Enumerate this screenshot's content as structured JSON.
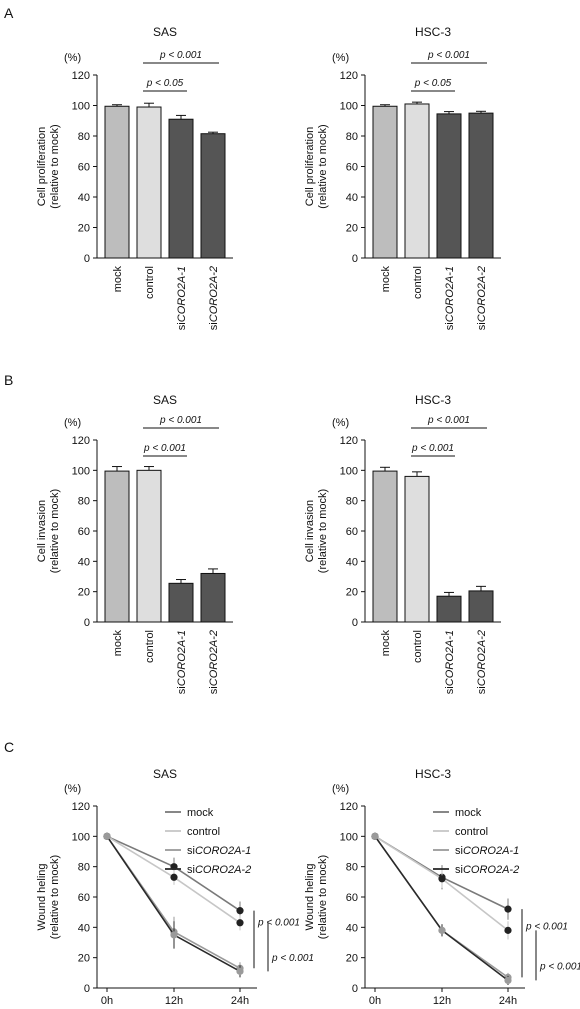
{
  "panels": [
    {
      "letter": "A"
    },
    {
      "letter": "B"
    },
    {
      "letter": "C"
    }
  ],
  "chart_data": [
    {
      "type": "bar",
      "panel": "A",
      "title": "SAS",
      "unit": "(%)",
      "ylabel_lines": [
        "Cell proliferation",
        "(relative to mock)"
      ],
      "ylim": [
        0,
        120
      ],
      "yticks": [
        "0",
        "20",
        "40",
        "60",
        "80",
        "100",
        "120"
      ],
      "categories": [
        "mock",
        "control",
        "siCORO2A-1",
        "siCORO2A-2"
      ],
      "cat_prefix": [
        "",
        "",
        "si",
        "si"
      ],
      "cat_italic": [
        "mock",
        "control",
        "CORO2A-1",
        "CORO2A-2"
      ],
      "values": [
        99.5,
        99,
        91,
        81.5
      ],
      "errors": [
        1,
        2.5,
        2.5,
        1
      ],
      "colors": [
        "#bdbdbd",
        "#dedede",
        "#555555",
        "#555555"
      ],
      "significance": [
        {
          "from": 1,
          "to": 2,
          "label": "p < 0.05"
        },
        {
          "from": 1,
          "to": 3,
          "label": "p < 0.001"
        }
      ]
    },
    {
      "type": "bar",
      "panel": "A",
      "title": "HSC-3",
      "unit": "(%)",
      "ylabel_lines": [
        "Cell proliferation",
        "(relative to mock)"
      ],
      "ylim": [
        0,
        120
      ],
      "yticks": [
        "0",
        "20",
        "40",
        "60",
        "80",
        "100",
        "120"
      ],
      "categories": [
        "mock",
        "control",
        "siCORO2A-1",
        "siCORO2A-2"
      ],
      "cat_prefix": [
        "",
        "",
        "si",
        "si"
      ],
      "cat_italic": [
        "mock",
        "control",
        "CORO2A-1",
        "CORO2A-2"
      ],
      "values": [
        99.5,
        101,
        94.5,
        95
      ],
      "errors": [
        1,
        1.2,
        1.5,
        1.2
      ],
      "colors": [
        "#bdbdbd",
        "#dedede",
        "#555555",
        "#555555"
      ],
      "significance": [
        {
          "from": 1,
          "to": 2,
          "label": "p < 0.05"
        },
        {
          "from": 1,
          "to": 3,
          "label": "p < 0.001"
        }
      ]
    },
    {
      "type": "bar",
      "panel": "B",
      "title": "SAS",
      "unit": "(%)",
      "ylabel_lines": [
        "Cell invasion",
        "(relative to mock)"
      ],
      "ylim": [
        0,
        120
      ],
      "yticks": [
        "0",
        "20",
        "40",
        "60",
        "80",
        "100",
        "120"
      ],
      "categories": [
        "mock",
        "control",
        "siCORO2A-1",
        "siCORO2A-2"
      ],
      "cat_prefix": [
        "",
        "",
        "si",
        "si"
      ],
      "cat_italic": [
        "mock",
        "control",
        "CORO2A-1",
        "CORO2A-2"
      ],
      "values": [
        99.5,
        100,
        25.5,
        32
      ],
      "errors": [
        3,
        2.5,
        2.5,
        3
      ],
      "colors": [
        "#bdbdbd",
        "#dedede",
        "#555555",
        "#555555"
      ],
      "significance": [
        {
          "from": 1,
          "to": 2,
          "label": "p < 0.001"
        },
        {
          "from": 1,
          "to": 3,
          "label": "p < 0.001"
        }
      ]
    },
    {
      "type": "bar",
      "panel": "B",
      "title": "HSC-3",
      "unit": "(%)",
      "ylabel_lines": [
        "Cell invasion",
        "(relative to mock)"
      ],
      "ylim": [
        0,
        120
      ],
      "yticks": [
        "0",
        "20",
        "40",
        "60",
        "80",
        "100",
        "120"
      ],
      "categories": [
        "mock",
        "control",
        "siCORO2A-1",
        "siCORO2A-2"
      ],
      "cat_prefix": [
        "",
        "",
        "si",
        "si"
      ],
      "cat_italic": [
        "mock",
        "control",
        "CORO2A-1",
        "CORO2A-2"
      ],
      "values": [
        99.5,
        96,
        17,
        20.5
      ],
      "errors": [
        2.5,
        3,
        2.5,
        3
      ],
      "colors": [
        "#bdbdbd",
        "#dedede",
        "#555555",
        "#555555"
      ],
      "significance": [
        {
          "from": 1,
          "to": 2,
          "label": "p < 0.001"
        },
        {
          "from": 1,
          "to": 3,
          "label": "p < 0.001"
        }
      ]
    },
    {
      "type": "line",
      "panel": "C",
      "title": "SAS",
      "unit": "(%)",
      "ylabel_lines": [
        "Wound heling",
        "(relative to mock)"
      ],
      "ylim": [
        0,
        120
      ],
      "yticks": [
        "0",
        "20",
        "40",
        "60",
        "80",
        "100",
        "120"
      ],
      "x": [
        "0h",
        "12h",
        "24h"
      ],
      "series": [
        {
          "name": "mock",
          "name_prefix": "",
          "name_italic": "",
          "values": [
            100,
            80,
            51
          ],
          "errors": [
            2,
            6,
            6
          ],
          "color": "#7a7a7a",
          "marker_color": "#222222"
        },
        {
          "name": "control",
          "name_prefix": "",
          "name_italic": "",
          "values": [
            100,
            73,
            43
          ],
          "errors": [
            2,
            5,
            5
          ],
          "color": "#c6c6c6",
          "marker_color": "#222222"
        },
        {
          "name": "siCORO2A-1",
          "name_prefix": "si",
          "name_italic": "CORO2A-1",
          "values": [
            100,
            37,
            13
          ],
          "errors": [
            2,
            10,
            4
          ],
          "color": "#9a9a9a",
          "marker_color": "#9a9a9a"
        },
        {
          "name": "siCORO2A-2",
          "name_prefix": "si",
          "name_italic": "CORO2A-2",
          "values": [
            100,
            35,
            11
          ],
          "errors": [
            2,
            9,
            4
          ],
          "color": "#2a2a2a",
          "marker_color": "#9a9a9a"
        }
      ],
      "significance": [
        {
          "from_value": 51,
          "to_value": 13,
          "label": "p < 0.001"
        },
        {
          "from_value": 43,
          "to_value": 11,
          "label": "p < 0.001"
        }
      ]
    },
    {
      "type": "line",
      "panel": "C",
      "title": "HSC-3",
      "unit": "(%)",
      "ylabel_lines": [
        "Wound heling",
        "(relative to mock)"
      ],
      "ylim": [
        0,
        120
      ],
      "yticks": [
        "0",
        "20",
        "40",
        "60",
        "80",
        "100",
        "120"
      ],
      "x": [
        "0h",
        "12h",
        "24h"
      ],
      "series": [
        {
          "name": "mock",
          "name_prefix": "",
          "name_italic": "",
          "values": [
            100,
            73,
            52
          ],
          "errors": [
            2,
            8,
            7
          ],
          "color": "#7a7a7a",
          "marker_color": "#222222"
        },
        {
          "name": "control",
          "name_prefix": "",
          "name_italic": "",
          "values": [
            100,
            72,
            38
          ],
          "errors": [
            2,
            6,
            6
          ],
          "color": "#c6c6c6",
          "marker_color": "#222222"
        },
        {
          "name": "siCORO2A-1",
          "name_prefix": "si",
          "name_italic": "CORO2A-1",
          "values": [
            100,
            38,
            7
          ],
          "errors": [
            2,
            4,
            3
          ],
          "color": "#9a9a9a",
          "marker_color": "#9a9a9a"
        },
        {
          "name": "siCORO2A-2",
          "name_prefix": "si",
          "name_italic": "CORO2A-2",
          "values": [
            100,
            38,
            5
          ],
          "errors": [
            2,
            4,
            3
          ],
          "color": "#2a2a2a",
          "marker_color": "#9a9a9a"
        }
      ],
      "significance": [
        {
          "from_value": 52,
          "to_value": 7,
          "label": "p < 0.001"
        },
        {
          "from_value": 38,
          "to_value": 5,
          "label": "p < 0.001"
        }
      ]
    }
  ]
}
